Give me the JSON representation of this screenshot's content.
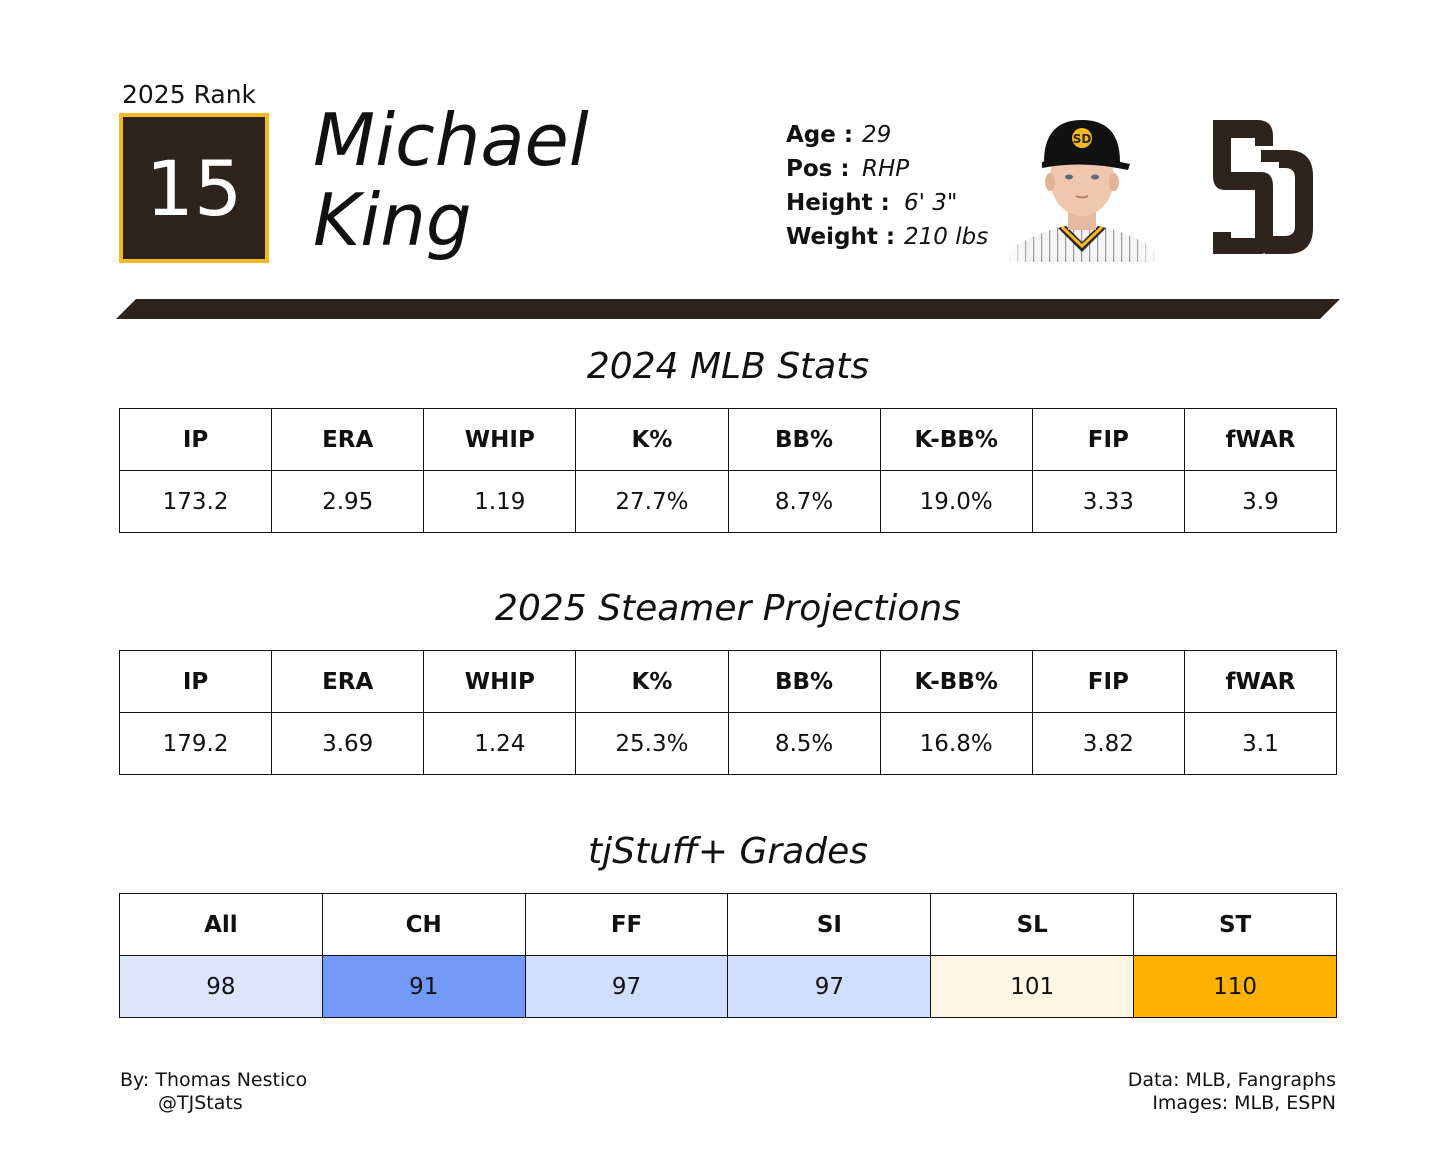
{
  "rank": {
    "label": "2025 Rank",
    "value": "15"
  },
  "player": {
    "first_name": "Michael",
    "last_name": "King",
    "info": [
      {
        "key": "Age :",
        "value": "29"
      },
      {
        "key": "Pos :",
        "value": "RHP"
      },
      {
        "key": "Height :",
        "value": "6' 3\""
      },
      {
        "key": "Weight :",
        "value": "210 lbs"
      }
    ]
  },
  "team_logo_text": "SD",
  "colors": {
    "primary": "#2f241d",
    "accent": "#f4b924"
  },
  "mlb_stats": {
    "title": "2024 MLB Stats",
    "headers": [
      "IP",
      "ERA",
      "WHIP",
      "K%",
      "BB%",
      "K-BB%",
      "FIP",
      "fWAR"
    ],
    "values": [
      "173.2",
      "2.95",
      "1.19",
      "27.7%",
      "8.7%",
      "19.0%",
      "3.33",
      "3.9"
    ]
  },
  "projections": {
    "title": "2025 Steamer Projections",
    "headers": [
      "IP",
      "ERA",
      "WHIP",
      "K%",
      "BB%",
      "K-BB%",
      "FIP",
      "fWAR"
    ],
    "values": [
      "179.2",
      "3.69",
      "1.24",
      "25.3%",
      "8.5%",
      "16.8%",
      "3.82",
      "3.1"
    ]
  },
  "grades": {
    "title": "tjStuff+ Grades",
    "headers": [
      "All",
      "CH",
      "FF",
      "SI",
      "SL",
      "ST"
    ],
    "values": [
      "98",
      "91",
      "97",
      "97",
      "101",
      "110"
    ],
    "cell_colors": [
      "#dde6fd",
      "#7399f6",
      "#d2defd",
      "#d2defd",
      "#fdf6e4",
      "#fdb201"
    ]
  },
  "footer": {
    "author": "By: Thomas Nestico",
    "handle": "@TJStats",
    "data_source": "Data: MLB, Fangraphs",
    "image_source": "Images: MLB, ESPN"
  }
}
